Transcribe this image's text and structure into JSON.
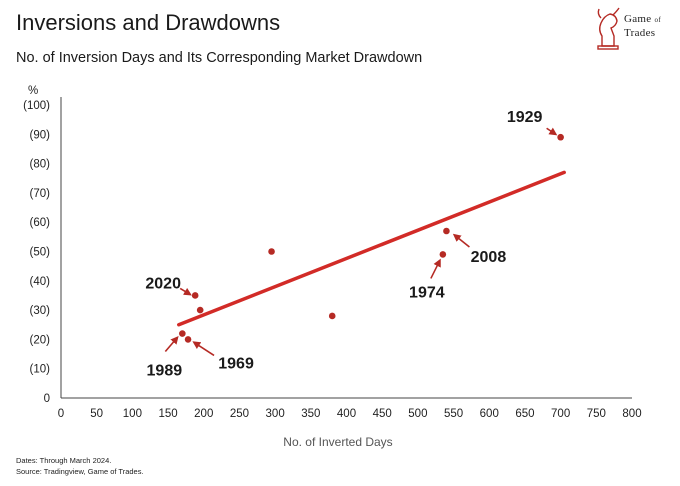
{
  "header": {
    "title": "Inversions and Drawdowns",
    "subtitle": "No. of Inversion Days and Its Corresponding Market Drawdown"
  },
  "logo": {
    "line1": "Game",
    "of": "of",
    "line2": "Trades"
  },
  "footnotes": {
    "dates": "Dates: Through March 2024.",
    "source": "Source: Tradingview, Game of Trades."
  },
  "chart_data": {
    "type": "scatter",
    "title": "",
    "xlabel": "No. of Inverted Days",
    "ylabel": "%",
    "xlim": [
      0,
      800
    ],
    "ylim": [
      0,
      100
    ],
    "x_ticks": [
      "0",
      "50",
      "100",
      "150",
      "200",
      "250",
      "300",
      "350",
      "400",
      "450",
      "500",
      "550",
      "600",
      "650",
      "700",
      "750",
      "800"
    ],
    "y_ticks": [
      "0",
      "(10)",
      "(20)",
      "(30)",
      "(40)",
      "(50)",
      "(60)",
      "(70)",
      "(80)",
      "(90)",
      "(100)"
    ],
    "grid": false,
    "colors": {
      "points": "#b52a24",
      "trendline": "#d22b27",
      "arrows": "#b52a24"
    },
    "points": [
      {
        "x": 700,
        "y": 89,
        "label": "1929"
      },
      {
        "x": 540,
        "y": 57,
        "label": "2008"
      },
      {
        "x": 535,
        "y": 49,
        "label": "1974"
      },
      {
        "x": 188,
        "y": 35,
        "label": "2020"
      },
      {
        "x": 195,
        "y": 30,
        "label": ""
      },
      {
        "x": 170,
        "y": 22,
        "label": "1989"
      },
      {
        "x": 178,
        "y": 20,
        "label": "1969"
      },
      {
        "x": 295,
        "y": 50,
        "label": ""
      },
      {
        "x": 380,
        "y": 28,
        "label": ""
      }
    ],
    "trendline": {
      "x": [
        165,
        705
      ],
      "y": [
        25,
        77
      ]
    }
  }
}
